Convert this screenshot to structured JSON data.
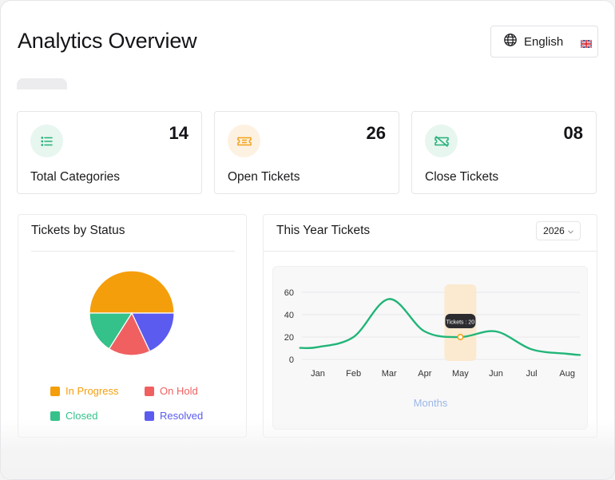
{
  "header": {
    "title": "Analytics Overview",
    "language": {
      "label": "English",
      "globe_icon": "globe-icon",
      "flag_icon": "uk-flag-icon"
    }
  },
  "stats": [
    {
      "label": "Total Categories",
      "value": "14",
      "icon": "list-icon",
      "color": "#25b07a",
      "bg": "#e7f6ef"
    },
    {
      "label": "Open Tickets",
      "value": "26",
      "icon": "ticket-icon",
      "color": "#f2a21b",
      "bg": "#fdf1e1"
    },
    {
      "label": "Close Tickets",
      "value": "08",
      "icon": "ticket-closed-icon",
      "color": "#25b07a",
      "bg": "#e7f6ef"
    }
  ],
  "status_panel": {
    "title": "Tickets by Status",
    "legend": [
      {
        "label": "In Progress",
        "color": "#f59e0b"
      },
      {
        "label": "On Hold",
        "color": "#f06060"
      },
      {
        "label": "Closed",
        "color": "#34c28a"
      },
      {
        "label": "Resolved",
        "color": "#5b5bf0"
      }
    ]
  },
  "year_panel": {
    "title": "This Year Tickets",
    "year": "2026",
    "tooltip": "Tickets : 20"
  },
  "chart_data": [
    {
      "type": "pie",
      "title": "Tickets by Status",
      "categories": [
        "In Progress",
        "On Hold",
        "Closed",
        "Resolved"
      ],
      "values": [
        50,
        16,
        16,
        18
      ],
      "colors": [
        "#f59e0b",
        "#f06060",
        "#34c28a",
        "#5b5bf0"
      ]
    },
    {
      "type": "line",
      "title": "This Year Tickets",
      "xlabel": "Months",
      "ylabel": "",
      "x": [
        "Jan",
        "Feb",
        "Mar",
        "Apr",
        "May",
        "Jun",
        "Jul",
        "Aug"
      ],
      "series": [
        {
          "values": [
            11,
            20,
            54,
            25,
            20,
            25,
            9,
            5
          ],
          "color": "#22b578"
        }
      ],
      "yticks": [
        0,
        20,
        40,
        60
      ],
      "ylim": [
        0,
        65
      ],
      "highlight": {
        "x": "May",
        "value": 20,
        "label": "Tickets : 20"
      },
      "grid": true
    }
  ]
}
